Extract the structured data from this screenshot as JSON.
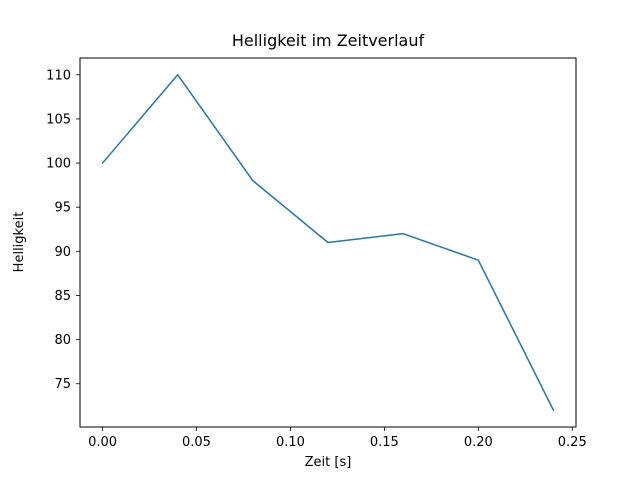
{
  "chart_data": {
    "type": "line",
    "title": "Helligkeit im Zeitverlauf",
    "xlabel": "Zeit [s]",
    "ylabel": "Helligkeit",
    "x": [
      0.0,
      0.04,
      0.08,
      0.12,
      0.16,
      0.2,
      0.24
    ],
    "y": [
      100,
      110,
      98,
      91,
      92,
      89,
      72
    ],
    "xlim": [
      -0.012,
      0.252
    ],
    "ylim": [
      70.1,
      111.9
    ],
    "xticks": [
      0.0,
      0.05,
      0.1,
      0.15,
      0.2,
      0.25
    ],
    "xtick_labels": [
      "0.00",
      "0.05",
      "0.10",
      "0.15",
      "0.20",
      "0.25"
    ],
    "yticks": [
      75,
      80,
      85,
      90,
      95,
      100,
      105,
      110
    ],
    "ytick_labels": [
      "75",
      "80",
      "85",
      "90",
      "95",
      "100",
      "105",
      "110"
    ],
    "line_color": "#1f77b4",
    "axis_color": "#000000",
    "background_color": "#ffffff",
    "grid": false,
    "legend": null
  }
}
